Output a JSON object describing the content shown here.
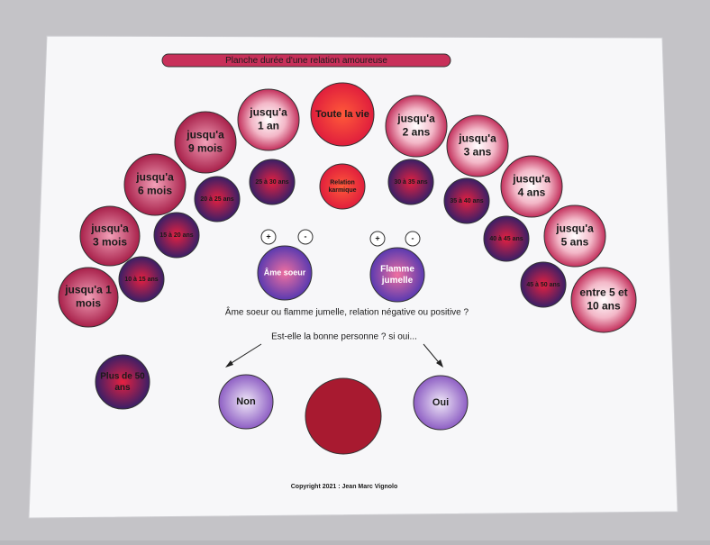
{
  "title": "Planche durée d'une relation amoureuse",
  "circles": [
    {
      "lines": [
        "jusqu'a 1",
        "mois"
      ]
    },
    {
      "lines": [
        "jusqu'a",
        "3 mois"
      ]
    },
    {
      "lines": [
        "jusqu'a",
        "6 mois"
      ]
    },
    {
      "lines": [
        "jusqu'a",
        "9 mois"
      ]
    },
    {
      "lines": [
        "jusqu'a",
        "1 an"
      ]
    },
    {
      "lines": [
        "Toute la vie"
      ]
    },
    {
      "lines": [
        "jusqu'a",
        "2 ans"
      ]
    },
    {
      "lines": [
        "jusqu'a",
        "3 ans"
      ]
    },
    {
      "lines": [
        "jusqu'a",
        "4 ans"
      ]
    },
    {
      "lines": [
        "jusqu'a",
        "5 ans"
      ]
    },
    {
      "lines": [
        "entre 5 et",
        "10 ans"
      ]
    },
    {
      "lines": [
        "10 à 15 ans"
      ]
    },
    {
      "lines": [
        "15 à 20 ans"
      ]
    },
    {
      "lines": [
        "20 à 25 ans"
      ]
    },
    {
      "lines": [
        "25 à 30 ans"
      ]
    },
    {
      "lines": [
        "Relation",
        "karmique"
      ]
    },
    {
      "lines": [
        "30 à 35 ans"
      ]
    },
    {
      "lines": [
        "35 à 40 ans"
      ]
    },
    {
      "lines": [
        "40 à 45 ans"
      ]
    },
    {
      "lines": [
        "45 à 50 ans"
      ]
    },
    {
      "lines": [
        "+"
      ]
    },
    {
      "lines": [
        "-"
      ]
    },
    {
      "lines": [
        "+"
      ]
    },
    {
      "lines": [
        "-"
      ]
    },
    {
      "lines": [
        "Âme soeur"
      ]
    },
    {
      "lines": [
        "Flamme",
        "jumelle"
      ]
    },
    {
      "lines": [
        "Plus de 50",
        "ans"
      ]
    },
    {
      "lines": [
        "Non"
      ]
    },
    {
      "lines": [
        "Oui"
      ]
    }
  ],
  "question": "Âme soeur ou flamme jumelle, relation négative ou positive ?",
  "subquestion": "Est-elle la bonne personne ? si oui...",
  "copyright": "Copyright 2021 : Jean Marc Vignolo"
}
